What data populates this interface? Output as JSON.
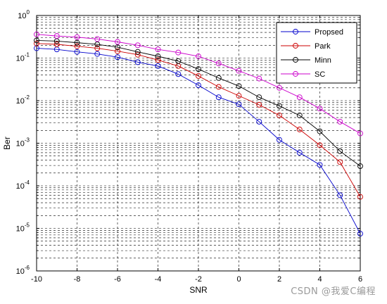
{
  "chart_data": {
    "type": "line",
    "title": "",
    "xlabel": "SNR",
    "ylabel": "Ber",
    "xlim": [
      -10,
      6
    ],
    "ylim": [
      1e-06,
      1
    ],
    "yscale": "log",
    "grid": true,
    "legend_position": "top-right",
    "x_ticks": [
      "-10",
      "-8",
      "-6",
      "-4",
      "-2",
      "0",
      "2",
      "4",
      "6"
    ],
    "y_ticks": [
      {
        "base": "10",
        "exp": "0"
      },
      {
        "base": "10",
        "exp": "-1"
      },
      {
        "base": "10",
        "exp": "-2"
      },
      {
        "base": "10",
        "exp": "-3"
      },
      {
        "base": "10",
        "exp": "-4"
      },
      {
        "base": "10",
        "exp": "-5"
      },
      {
        "base": "10",
        "exp": "-6"
      }
    ],
    "x": [
      -10,
      -9,
      -8,
      -7,
      -6,
      -5,
      -4,
      -3,
      -2,
      -1,
      0,
      1,
      2,
      3,
      4,
      5,
      6
    ],
    "series": [
      {
        "name": "Propsed",
        "color": "#0000cc",
        "values": [
          0.17,
          0.16,
          0.14,
          0.125,
          0.105,
          0.08,
          0.065,
          0.042,
          0.023,
          0.012,
          0.0082,
          0.0032,
          0.0012,
          0.0006,
          0.00031,
          6e-05,
          7.5e-06
        ]
      },
      {
        "name": "Park",
        "color": "#cc0000",
        "values": [
          0.22,
          0.21,
          0.19,
          0.17,
          0.145,
          0.12,
          0.09,
          0.065,
          0.038,
          0.021,
          0.013,
          0.008,
          0.0045,
          0.0021,
          0.0009,
          0.00036,
          5.5e-05
        ]
      },
      {
        "name": "Minn",
        "color": "#000000",
        "values": [
          0.26,
          0.25,
          0.23,
          0.21,
          0.18,
          0.14,
          0.11,
          0.085,
          0.055,
          0.034,
          0.022,
          0.012,
          0.0075,
          0.0045,
          0.0019,
          0.00065,
          0.00029
        ]
      },
      {
        "name": "SC",
        "color": "#cc00cc",
        "values": [
          0.36,
          0.33,
          0.31,
          0.28,
          0.24,
          0.2,
          0.16,
          0.135,
          0.11,
          0.075,
          0.05,
          0.033,
          0.02,
          0.012,
          0.0065,
          0.0032,
          0.0017
        ]
      }
    ]
  },
  "watermark": "CSDN @我爱C编程"
}
